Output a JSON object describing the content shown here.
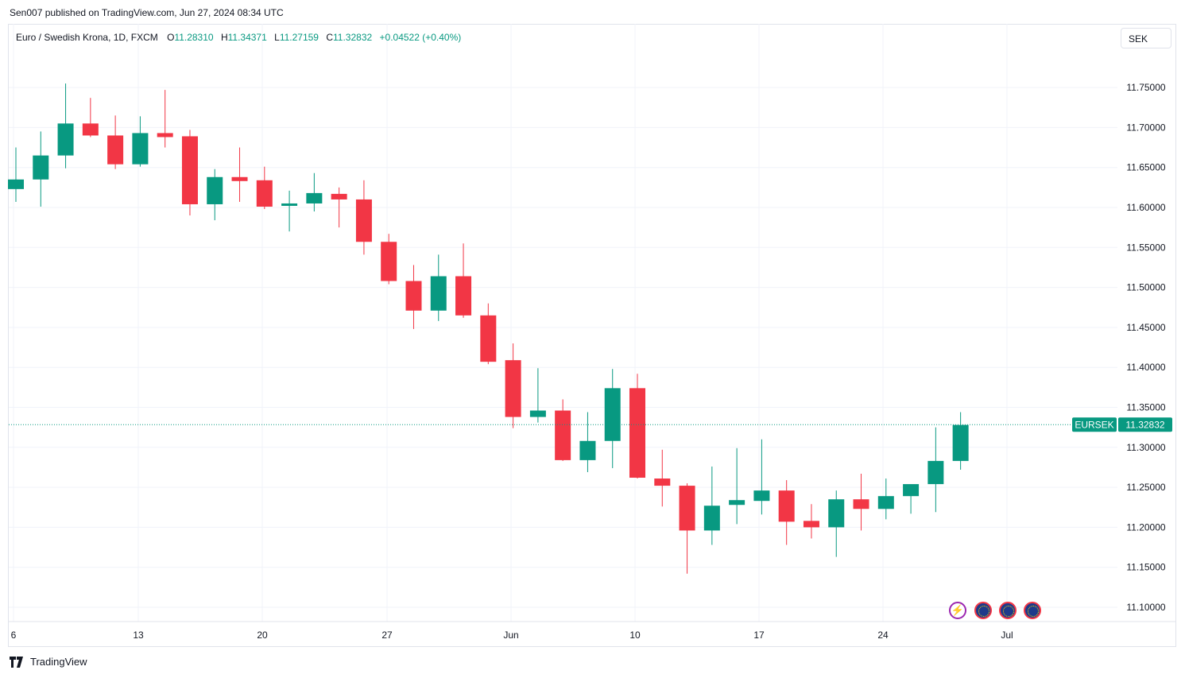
{
  "header": {
    "published_line": "Sen007 published on TradingView.com, Jun 27, 2024 08:34 UTC"
  },
  "legend": {
    "symbol_description": "Euro / Swedish Krona, 1D, FXCM",
    "open_label": "O",
    "open_value": "11.28310",
    "high_label": "H",
    "high_value": "11.34371",
    "low_label": "L",
    "low_value": "11.27159",
    "close_label": "C",
    "close_value": "11.32832",
    "change": "+0.04522 (+0.40%)"
  },
  "currency_button": {
    "label": "SEK"
  },
  "price_tag": {
    "symbol": "EURSEK",
    "value": "11.32832"
  },
  "footer": {
    "brand": "TradingView"
  },
  "colors": {
    "up": "#089981",
    "down": "#f23645",
    "grid": "#f0f3fa",
    "axis_text": "#131722"
  },
  "chart_data": {
    "type": "candlestick",
    "y_ticks": [
      "11.75000",
      "11.70000",
      "11.65000",
      "11.60000",
      "11.55000",
      "11.50000",
      "11.45000",
      "11.40000",
      "11.35000",
      "11.30000",
      "11.25000",
      "11.20000",
      "11.15000",
      "11.10000"
    ],
    "ylim": [
      11.1,
      11.75
    ],
    "x_ticks": [
      "6",
      "13",
      "20",
      "27",
      "Jun",
      "10",
      "17",
      "24",
      "Jul"
    ],
    "last_price": 11.32832,
    "candles": [
      {
        "o": 11.623,
        "h": 11.675,
        "l": 11.607,
        "c": 11.635
      },
      {
        "o": 11.635,
        "h": 11.695,
        "l": 11.601,
        "c": 11.665
      },
      {
        "o": 11.665,
        "h": 11.755,
        "l": 11.649,
        "c": 11.705
      },
      {
        "o": 11.705,
        "h": 11.737,
        "l": 11.688,
        "c": 11.69
      },
      {
        "o": 11.69,
        "h": 11.715,
        "l": 11.648,
        "c": 11.654
      },
      {
        "o": 11.654,
        "h": 11.714,
        "l": 11.651,
        "c": 11.693
      },
      {
        "o": 11.693,
        "h": 11.747,
        "l": 11.675,
        "c": 11.688
      },
      {
        "o": 11.689,
        "h": 11.697,
        "l": 11.59,
        "c": 11.604
      },
      {
        "o": 11.604,
        "h": 11.648,
        "l": 11.584,
        "c": 11.638
      },
      {
        "o": 11.638,
        "h": 11.675,
        "l": 11.607,
        "c": 11.633
      },
      {
        "o": 11.634,
        "h": 11.651,
        "l": 11.598,
        "c": 11.601
      },
      {
        "o": 11.602,
        "h": 11.621,
        "l": 11.57,
        "c": 11.605
      },
      {
        "o": 11.605,
        "h": 11.643,
        "l": 11.595,
        "c": 11.618
      },
      {
        "o": 11.617,
        "h": 11.625,
        "l": 11.575,
        "c": 11.61
      },
      {
        "o": 11.61,
        "h": 11.634,
        "l": 11.541,
        "c": 11.557
      },
      {
        "o": 11.557,
        "h": 11.567,
        "l": 11.504,
        "c": 11.508
      },
      {
        "o": 11.508,
        "h": 11.528,
        "l": 11.448,
        "c": 11.471
      },
      {
        "o": 11.471,
        "h": 11.541,
        "l": 11.458,
        "c": 11.514
      },
      {
        "o": 11.514,
        "h": 11.555,
        "l": 11.462,
        "c": 11.465
      },
      {
        "o": 11.465,
        "h": 11.48,
        "l": 11.404,
        "c": 11.407
      },
      {
        "o": 11.409,
        "h": 11.43,
        "l": 11.324,
        "c": 11.338
      },
      {
        "o": 11.338,
        "h": 11.399,
        "l": 11.331,
        "c": 11.346
      },
      {
        "o": 11.346,
        "h": 11.36,
        "l": 11.283,
        "c": 11.284
      },
      {
        "o": 11.284,
        "h": 11.344,
        "l": 11.269,
        "c": 11.308
      },
      {
        "o": 11.308,
        "h": 11.398,
        "l": 11.274,
        "c": 11.374
      },
      {
        "o": 11.374,
        "h": 11.392,
        "l": 11.261,
        "c": 11.262
      },
      {
        "o": 11.261,
        "h": 11.297,
        "l": 11.226,
        "c": 11.252
      },
      {
        "o": 11.252,
        "h": 11.255,
        "l": 11.142,
        "c": 11.196
      },
      {
        "o": 11.196,
        "h": 11.276,
        "l": 11.178,
        "c": 11.227
      },
      {
        "o": 11.228,
        "h": 11.299,
        "l": 11.204,
        "c": 11.234
      },
      {
        "o": 11.233,
        "h": 11.31,
        "l": 11.216,
        "c": 11.246
      },
      {
        "o": 11.246,
        "h": 11.259,
        "l": 11.178,
        "c": 11.207
      },
      {
        "o": 11.208,
        "h": 11.229,
        "l": 11.186,
        "c": 11.2
      },
      {
        "o": 11.2,
        "h": 11.246,
        "l": 11.163,
        "c": 11.235
      },
      {
        "o": 11.235,
        "h": 11.267,
        "l": 11.196,
        "c": 11.223
      },
      {
        "o": 11.223,
        "h": 11.261,
        "l": 11.21,
        "c": 11.239
      },
      {
        "o": 11.239,
        "h": 11.252,
        "l": 11.217,
        "c": 11.254
      },
      {
        "o": 11.254,
        "h": 11.325,
        "l": 11.219,
        "c": 11.283
      },
      {
        "o": 11.283,
        "h": 11.344,
        "l": 11.272,
        "c": 11.328
      }
    ]
  }
}
